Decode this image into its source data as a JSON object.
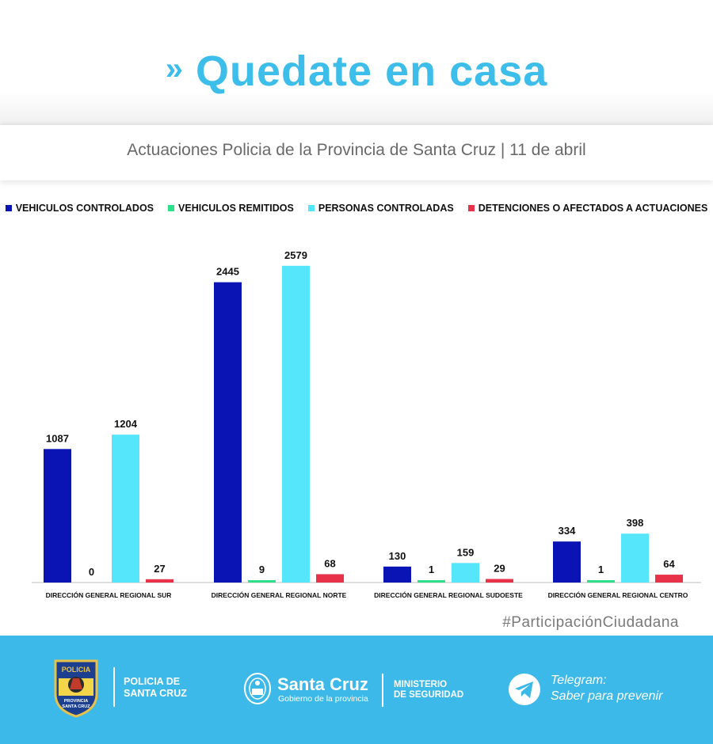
{
  "header": {
    "chevrons": "»",
    "title": "Quedate en casa",
    "subtitle": "Actuaciones Policia de la Provincia de Santa Cruz | 11 de abril"
  },
  "colors": {
    "brand": "#3dbde9",
    "series_vehiculos_controlados": "#0a14b4",
    "series_vehiculos_remitidos": "#2ee08a",
    "series_personas_controladas": "#55e6fb",
    "series_detenciones": "#e8324a"
  },
  "chart_data": {
    "type": "bar",
    "categories": [
      "DIRECCIÓN GENERAL REGIONAL SUR",
      "DIRECCIÓN GENERAL REGIONAL NORTE",
      "DIRECCIÓN GENERAL REGIONAL SUDOESTE",
      "DIRECCIÓN GENERAL REGIONAL CENTRO"
    ],
    "series": [
      {
        "name": "VEHICULOS CONTROLADOS",
        "color": "#0a14b4",
        "values": [
          1087,
          2445,
          130,
          334
        ]
      },
      {
        "name": "VEHICULOS REMITIDOS",
        "color": "#2ee08a",
        "values": [
          0,
          9,
          1,
          1
        ]
      },
      {
        "name": "PERSONAS CONTROLADAS",
        "color": "#55e6fb",
        "values": [
          1204,
          2579,
          159,
          398
        ]
      },
      {
        "name": "DETENCIONES O AFECTADOS A ACTUACIONES",
        "color": "#e8324a",
        "values": [
          27,
          68,
          29,
          64
        ]
      }
    ],
    "ylim": [
      0,
      2700
    ],
    "grid": false,
    "legend_position": "top",
    "data_labels": true
  },
  "hashtag": "#ParticipaciónCiudadana",
  "footer": {
    "badge_top_text": "POLICIA",
    "badge_bottom_line1": "PROVINCIA",
    "badge_bottom_line2": "SANTA CRUZ",
    "policia_line1": "POLICIA DE",
    "policia_line2": "SANTA CRUZ",
    "santa_cruz_name": "Santa Cruz",
    "santa_cruz_sub": "Gobierno de la provincia",
    "ministerio_line1": "MINISTERIO",
    "ministerio_line2": "DE SEGURIDAD",
    "telegram_line1": "Telegram:",
    "telegram_line2": "Saber para prevenir"
  }
}
